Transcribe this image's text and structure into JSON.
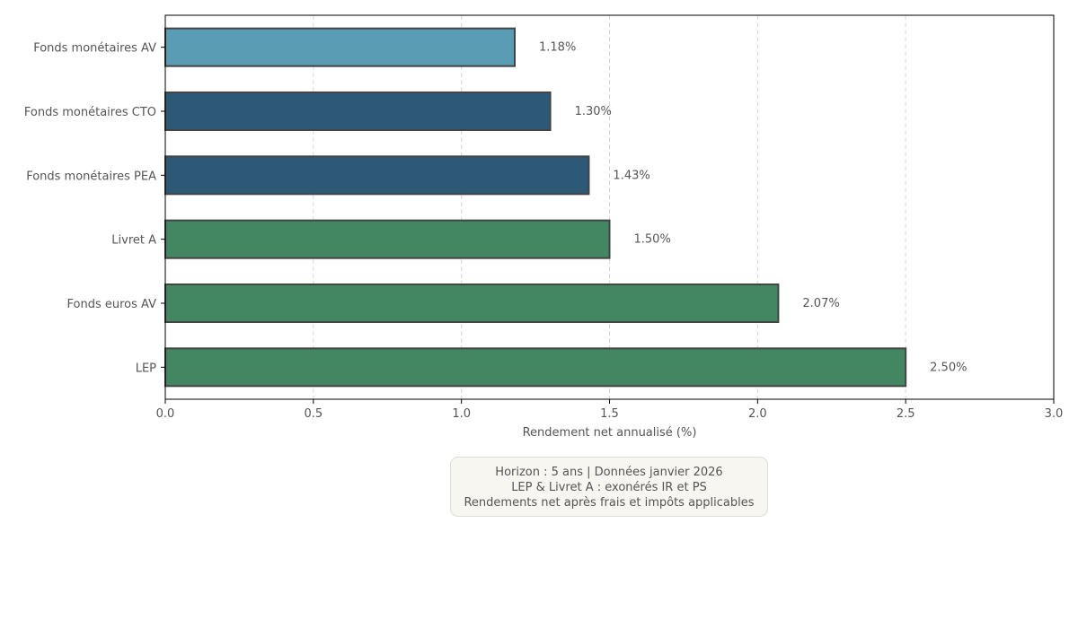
{
  "chart_data": {
    "type": "bar",
    "orientation": "horizontal",
    "categories": [
      "Fonds monétaires AV",
      "Fonds monétaires CTO",
      "Fonds monétaires PEA",
      "Livret A",
      "Fonds euros AV",
      "LEP"
    ],
    "values": [
      1.18,
      1.3,
      1.43,
      1.5,
      2.07,
      2.5
    ],
    "data_labels": [
      "1.18%",
      "1.30%",
      "1.43%",
      "1.50%",
      "2.07%",
      "2.50%"
    ],
    "colors": [
      "#5097b0",
      "#225070",
      "#225070",
      "#387f5a",
      "#387f5a",
      "#387f5a"
    ],
    "xlabel": "Rendement net annualisé (%)",
    "ylabel": "",
    "title": "",
    "xlim": [
      0,
      3.0
    ],
    "xticks": [
      "0.0",
      "0.5",
      "1.0",
      "1.5",
      "2.0",
      "2.5",
      "3.0"
    ],
    "grid": "vertical dashed",
    "annotation": [
      "Horizon : 5 ans | Données janvier 2026",
      "LEP & Livret A : exonérés IR et PS",
      "Rendements net après frais et impôts applicables"
    ]
  }
}
